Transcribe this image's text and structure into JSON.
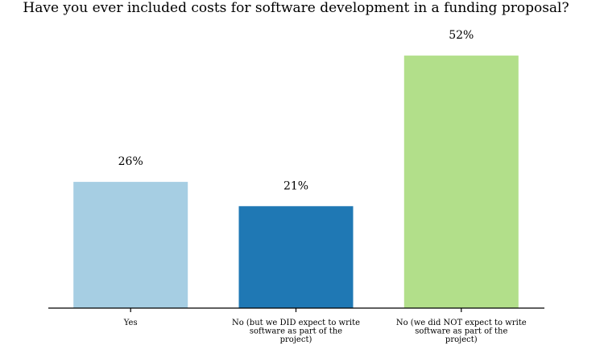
{
  "chart_data": {
    "type": "bar",
    "title": "Have you ever included costs for software development in a funding proposal?",
    "xlabel": "",
    "ylabel": "",
    "categories": [
      "Yes",
      "No (but we DID expect to write software as part of the project)",
      "No (we did NOT expect to write software as part of the project)"
    ],
    "tick_label_lines": [
      [
        "Yes"
      ],
      [
        "No (but we DID expect to write",
        "software as part of the",
        "project)"
      ],
      [
        "No (we did NOT expect to write",
        "software as part of the",
        "project)"
      ]
    ],
    "values": [
      26,
      21,
      52
    ],
    "value_labels": [
      "26%",
      "21%",
      "52%"
    ],
    "colors": [
      "#a6cee3",
      "#1f78b4",
      "#b2df8a"
    ],
    "ylim": [
      0,
      56
    ],
    "grid": false,
    "y_axis_visible": false
  }
}
